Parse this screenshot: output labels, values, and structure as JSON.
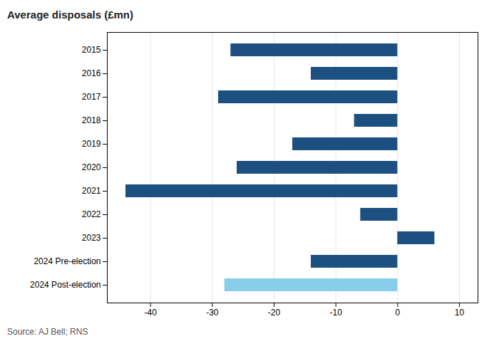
{
  "chart_data": {
    "type": "bar",
    "orientation": "horizontal",
    "title": "Average disposals (£mn)",
    "source": "Source: AJ Bell; RNS",
    "categories": [
      "2015",
      "2016",
      "2017",
      "2018",
      "2019",
      "2020",
      "2021",
      "2022",
      "2023",
      "2024 Pre-election",
      "2024 Post-election"
    ],
    "values": [
      -27,
      -14,
      -29,
      -7,
      -17,
      -26,
      -44,
      -6,
      6,
      -14,
      -28
    ],
    "colors": [
      "#1b5080",
      "#1b5080",
      "#1b5080",
      "#1b5080",
      "#1b5080",
      "#1b5080",
      "#1b5080",
      "#1b5080",
      "#1b5080",
      "#1b5080",
      "#87ceeb"
    ],
    "xlim": [
      -47,
      13
    ],
    "xticks": [
      -40,
      -30,
      -20,
      -10,
      0,
      10
    ],
    "grid": true
  }
}
